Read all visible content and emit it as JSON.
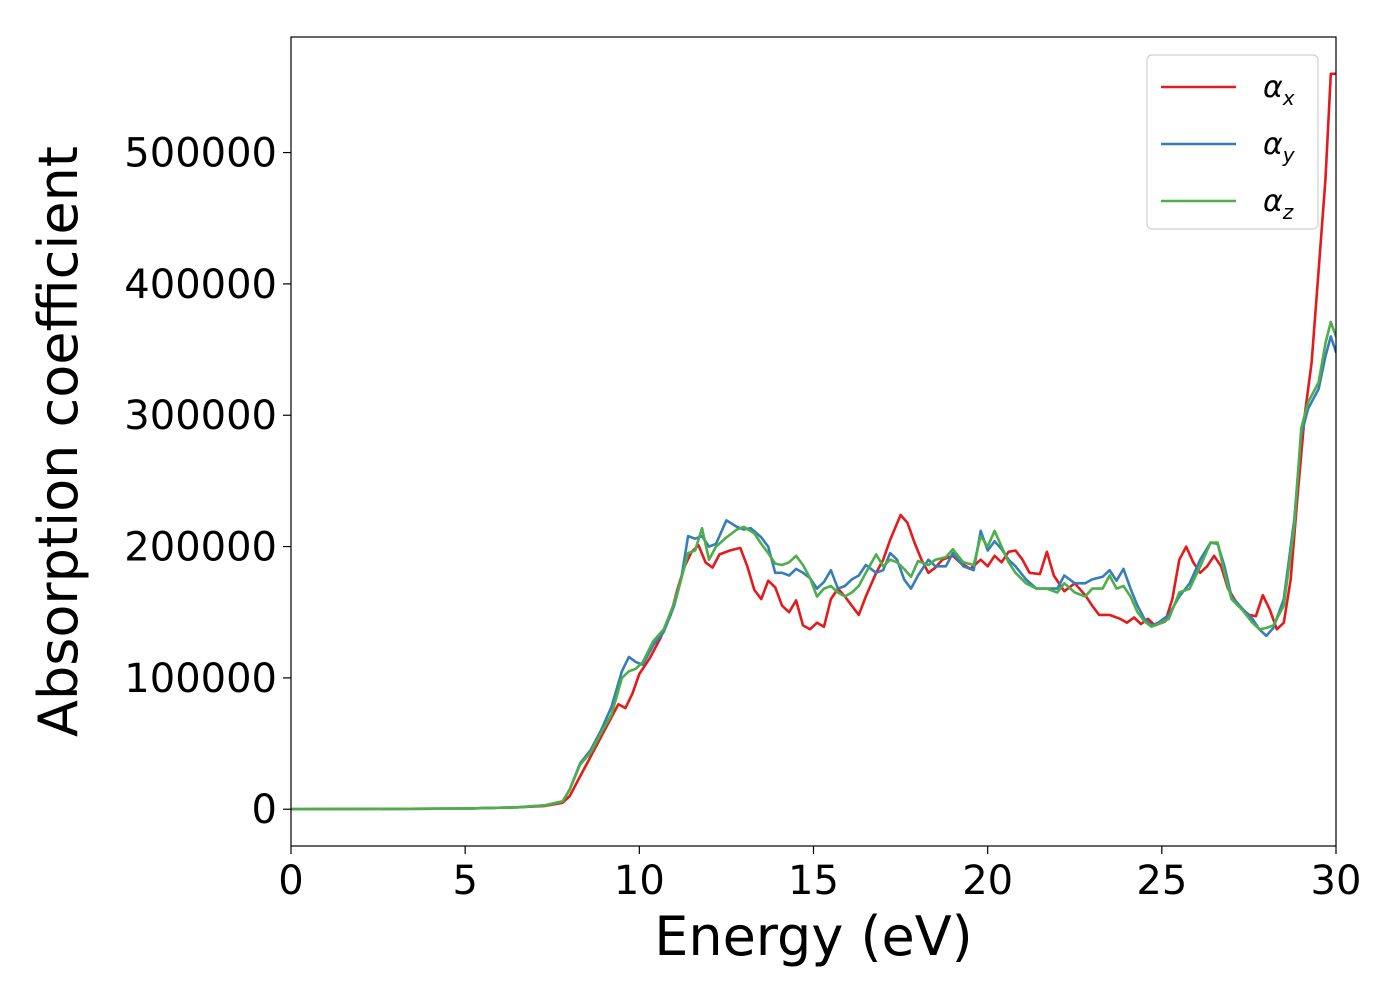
{
  "chart_data": {
    "type": "line",
    "title": "",
    "xlabel": "Energy (eV)",
    "ylabel": "Absorption coefficient",
    "xlim": [
      0,
      30
    ],
    "ylim": [
      -28000,
      588000
    ],
    "xticks": [
      0,
      5,
      10,
      15,
      20,
      25,
      30
    ],
    "yticks": [
      0,
      100000,
      200000,
      300000,
      400000,
      500000
    ],
    "grid": false,
    "legend_position": "top-right",
    "series": [
      {
        "name": "α",
        "subscript": "x",
        "color": "#e41a1c",
        "points": [
          [
            0,
            0
          ],
          [
            5,
            500
          ],
          [
            6.5,
            1500
          ],
          [
            7.3,
            2500
          ],
          [
            7.8,
            5000
          ],
          [
            8.0,
            10000
          ],
          [
            8.3,
            25000
          ],
          [
            8.6,
            40000
          ],
          [
            8.9,
            55000
          ],
          [
            9.2,
            70000
          ],
          [
            9.4,
            80000
          ],
          [
            9.6,
            77000
          ],
          [
            9.8,
            88000
          ],
          [
            10.0,
            103000
          ],
          [
            10.3,
            115000
          ],
          [
            10.6,
            130000
          ],
          [
            10.9,
            148000
          ],
          [
            11.1,
            168000
          ],
          [
            11.3,
            185000
          ],
          [
            11.5,
            196000
          ],
          [
            11.7,
            201000
          ],
          [
            11.9,
            188000
          ],
          [
            12.1,
            184000
          ],
          [
            12.3,
            194000
          ],
          [
            12.6,
            197000
          ],
          [
            12.9,
            199000
          ],
          [
            13.1,
            185000
          ],
          [
            13.3,
            167000
          ],
          [
            13.5,
            160000
          ],
          [
            13.7,
            174000
          ],
          [
            13.9,
            169000
          ],
          [
            14.1,
            155000
          ],
          [
            14.3,
            150000
          ],
          [
            14.5,
            159000
          ],
          [
            14.7,
            140000
          ],
          [
            14.9,
            137000
          ],
          [
            15.1,
            142000
          ],
          [
            15.3,
            139000
          ],
          [
            15.5,
            160000
          ],
          [
            15.7,
            168000
          ],
          [
            15.9,
            162000
          ],
          [
            16.1,
            155000
          ],
          [
            16.3,
            148000
          ],
          [
            16.5,
            162000
          ],
          [
            16.8,
            180000
          ],
          [
            17.0,
            190000
          ],
          [
            17.2,
            205000
          ],
          [
            17.5,
            224000
          ],
          [
            17.7,
            218000
          ],
          [
            17.9,
            203000
          ],
          [
            18.1,
            190000
          ],
          [
            18.3,
            180000
          ],
          [
            18.5,
            184000
          ],
          [
            18.7,
            190000
          ],
          [
            19.0,
            193000
          ],
          [
            19.2,
            188000
          ],
          [
            19.5,
            183000
          ],
          [
            19.8,
            190000
          ],
          [
            20.0,
            185000
          ],
          [
            20.2,
            193000
          ],
          [
            20.4,
            188000
          ],
          [
            20.6,
            196000
          ],
          [
            20.8,
            197000
          ],
          [
            21.0,
            190000
          ],
          [
            21.2,
            180000
          ],
          [
            21.5,
            179000
          ],
          [
            21.7,
            196000
          ],
          [
            21.9,
            178000
          ],
          [
            22.2,
            166000
          ],
          [
            22.5,
            172000
          ],
          [
            22.8,
            163000
          ],
          [
            23.0,
            155000
          ],
          [
            23.2,
            148000
          ],
          [
            23.5,
            148000
          ],
          [
            23.8,
            145000
          ],
          [
            24.0,
            142000
          ],
          [
            24.2,
            146000
          ],
          [
            24.4,
            141000
          ],
          [
            24.6,
            145000
          ],
          [
            24.8,
            140000
          ],
          [
            25.1,
            143000
          ],
          [
            25.3,
            160000
          ],
          [
            25.5,
            190000
          ],
          [
            25.7,
            200000
          ],
          [
            25.9,
            188000
          ],
          [
            26.1,
            180000
          ],
          [
            26.3,
            185000
          ],
          [
            26.5,
            193000
          ],
          [
            26.7,
            185000
          ],
          [
            26.9,
            168000
          ],
          [
            27.2,
            155000
          ],
          [
            27.5,
            148000
          ],
          [
            27.7,
            147000
          ],
          [
            27.9,
            163000
          ],
          [
            28.1,
            152000
          ],
          [
            28.3,
            137000
          ],
          [
            28.5,
            142000
          ],
          [
            28.7,
            175000
          ],
          [
            28.9,
            240000
          ],
          [
            29.1,
            300000
          ],
          [
            29.3,
            340000
          ],
          [
            29.5,
            410000
          ],
          [
            29.7,
            480000
          ],
          [
            29.85,
            560000
          ],
          [
            30.0,
            560000
          ]
        ]
      },
      {
        "name": "α",
        "subscript": "y",
        "color": "#377eb8",
        "points": [
          [
            0,
            0
          ],
          [
            5,
            500
          ],
          [
            6.5,
            1500
          ],
          [
            7.3,
            3000
          ],
          [
            7.8,
            6000
          ],
          [
            8.0,
            15000
          ],
          [
            8.3,
            35000
          ],
          [
            8.6,
            45000
          ],
          [
            8.9,
            60000
          ],
          [
            9.2,
            78000
          ],
          [
            9.5,
            105000
          ],
          [
            9.7,
            116000
          ],
          [
            9.9,
            112000
          ],
          [
            10.1,
            110000
          ],
          [
            10.4,
            125000
          ],
          [
            10.7,
            135000
          ],
          [
            11.0,
            155000
          ],
          [
            11.2,
            175000
          ],
          [
            11.4,
            208000
          ],
          [
            11.6,
            206000
          ],
          [
            11.8,
            208000
          ],
          [
            12.0,
            200000
          ],
          [
            12.2,
            202000
          ],
          [
            12.5,
            220000
          ],
          [
            12.8,
            215000
          ],
          [
            13.0,
            213000
          ],
          [
            13.2,
            214000
          ],
          [
            13.5,
            207000
          ],
          [
            13.7,
            200000
          ],
          [
            13.9,
            180000
          ],
          [
            14.1,
            180000
          ],
          [
            14.3,
            178000
          ],
          [
            14.5,
            183000
          ],
          [
            14.7,
            180000
          ],
          [
            14.9,
            176000
          ],
          [
            15.1,
            168000
          ],
          [
            15.3,
            173000
          ],
          [
            15.5,
            182000
          ],
          [
            15.7,
            168000
          ],
          [
            15.9,
            170000
          ],
          [
            16.1,
            175000
          ],
          [
            16.3,
            178000
          ],
          [
            16.5,
            186000
          ],
          [
            16.8,
            180000
          ],
          [
            17.0,
            182000
          ],
          [
            17.2,
            195000
          ],
          [
            17.4,
            190000
          ],
          [
            17.6,
            175000
          ],
          [
            17.8,
            168000
          ],
          [
            18.0,
            178000
          ],
          [
            18.3,
            190000
          ],
          [
            18.5,
            185000
          ],
          [
            18.8,
            185000
          ],
          [
            19.0,
            195000
          ],
          [
            19.3,
            185000
          ],
          [
            19.6,
            182000
          ],
          [
            19.8,
            212000
          ],
          [
            20.0,
            197000
          ],
          [
            20.2,
            204000
          ],
          [
            20.4,
            198000
          ],
          [
            20.6,
            190000
          ],
          [
            20.8,
            185000
          ],
          [
            21.1,
            175000
          ],
          [
            21.4,
            168000
          ],
          [
            21.7,
            168000
          ],
          [
            22.0,
            168000
          ],
          [
            22.2,
            178000
          ],
          [
            22.5,
            172000
          ],
          [
            22.8,
            172000
          ],
          [
            23.0,
            175000
          ],
          [
            23.3,
            177000
          ],
          [
            23.5,
            182000
          ],
          [
            23.7,
            174000
          ],
          [
            23.9,
            183000
          ],
          [
            24.1,
            168000
          ],
          [
            24.3,
            155000
          ],
          [
            24.5,
            145000
          ],
          [
            24.7,
            140000
          ],
          [
            24.9,
            142000
          ],
          [
            25.2,
            148000
          ],
          [
            25.5,
            162000
          ],
          [
            25.8,
            172000
          ],
          [
            26.1,
            190000
          ],
          [
            26.4,
            203000
          ],
          [
            26.6,
            202000
          ],
          [
            26.8,
            185000
          ],
          [
            27.0,
            162000
          ],
          [
            27.3,
            153000
          ],
          [
            27.6,
            145000
          ],
          [
            27.8,
            137000
          ],
          [
            28.0,
            132000
          ],
          [
            28.2,
            138000
          ],
          [
            28.5,
            160000
          ],
          [
            28.8,
            220000
          ],
          [
            29.0,
            285000
          ],
          [
            29.2,
            305000
          ],
          [
            29.5,
            320000
          ],
          [
            29.7,
            345000
          ],
          [
            29.85,
            360000
          ],
          [
            30.0,
            348000
          ]
        ]
      },
      {
        "name": "α",
        "subscript": "z",
        "color": "#4daf4a",
        "points": [
          [
            0,
            0
          ],
          [
            5,
            500
          ],
          [
            6.5,
            1500
          ],
          [
            7.3,
            3000
          ],
          [
            7.8,
            6000
          ],
          [
            8.0,
            15000
          ],
          [
            8.3,
            34000
          ],
          [
            8.6,
            43000
          ],
          [
            8.9,
            58000
          ],
          [
            9.2,
            72000
          ],
          [
            9.5,
            100000
          ],
          [
            9.7,
            105000
          ],
          [
            9.9,
            107000
          ],
          [
            10.1,
            112000
          ],
          [
            10.4,
            128000
          ],
          [
            10.7,
            137000
          ],
          [
            11.0,
            157000
          ],
          [
            11.2,
            175000
          ],
          [
            11.4,
            195000
          ],
          [
            11.6,
            197000
          ],
          [
            11.8,
            214000
          ],
          [
            12.0,
            190000
          ],
          [
            12.2,
            200000
          ],
          [
            12.5,
            207000
          ],
          [
            12.8,
            213000
          ],
          [
            13.0,
            215000
          ],
          [
            13.3,
            210000
          ],
          [
            13.5,
            202000
          ],
          [
            13.7,
            195000
          ],
          [
            13.9,
            187000
          ],
          [
            14.1,
            186000
          ],
          [
            14.3,
            188000
          ],
          [
            14.5,
            193000
          ],
          [
            14.7,
            186000
          ],
          [
            14.9,
            176000
          ],
          [
            15.1,
            162000
          ],
          [
            15.3,
            168000
          ],
          [
            15.5,
            170000
          ],
          [
            15.7,
            165000
          ],
          [
            15.9,
            162000
          ],
          [
            16.1,
            165000
          ],
          [
            16.3,
            170000
          ],
          [
            16.5,
            180000
          ],
          [
            16.8,
            194000
          ],
          [
            17.0,
            185000
          ],
          [
            17.2,
            190000
          ],
          [
            17.4,
            188000
          ],
          [
            17.6,
            183000
          ],
          [
            17.8,
            177000
          ],
          [
            18.0,
            189000
          ],
          [
            18.3,
            186000
          ],
          [
            18.5,
            190000
          ],
          [
            18.8,
            192000
          ],
          [
            19.0,
            198000
          ],
          [
            19.3,
            188000
          ],
          [
            19.6,
            186000
          ],
          [
            19.8,
            208000
          ],
          [
            20.0,
            200000
          ],
          [
            20.2,
            212000
          ],
          [
            20.4,
            200000
          ],
          [
            20.6,
            188000
          ],
          [
            20.8,
            180000
          ],
          [
            21.1,
            172000
          ],
          [
            21.4,
            168000
          ],
          [
            21.7,
            168000
          ],
          [
            22.0,
            165000
          ],
          [
            22.2,
            172000
          ],
          [
            22.5,
            165000
          ],
          [
            22.8,
            162000
          ],
          [
            23.0,
            168000
          ],
          [
            23.3,
            168000
          ],
          [
            23.5,
            178000
          ],
          [
            23.7,
            168000
          ],
          [
            23.9,
            170000
          ],
          [
            24.1,
            162000
          ],
          [
            24.3,
            150000
          ],
          [
            24.5,
            143000
          ],
          [
            24.7,
            139000
          ],
          [
            24.9,
            141000
          ],
          [
            25.2,
            145000
          ],
          [
            25.5,
            165000
          ],
          [
            25.8,
            168000
          ],
          [
            26.1,
            185000
          ],
          [
            26.4,
            203000
          ],
          [
            26.6,
            203000
          ],
          [
            26.8,
            180000
          ],
          [
            27.0,
            160000
          ],
          [
            27.3,
            152000
          ],
          [
            27.6,
            142000
          ],
          [
            27.8,
            137000
          ],
          [
            28.0,
            138000
          ],
          [
            28.2,
            140000
          ],
          [
            28.5,
            155000
          ],
          [
            28.8,
            215000
          ],
          [
            29.0,
            290000
          ],
          [
            29.2,
            310000
          ],
          [
            29.5,
            325000
          ],
          [
            29.7,
            355000
          ],
          [
            29.85,
            371000
          ],
          [
            30.0,
            360000
          ]
        ]
      }
    ]
  }
}
